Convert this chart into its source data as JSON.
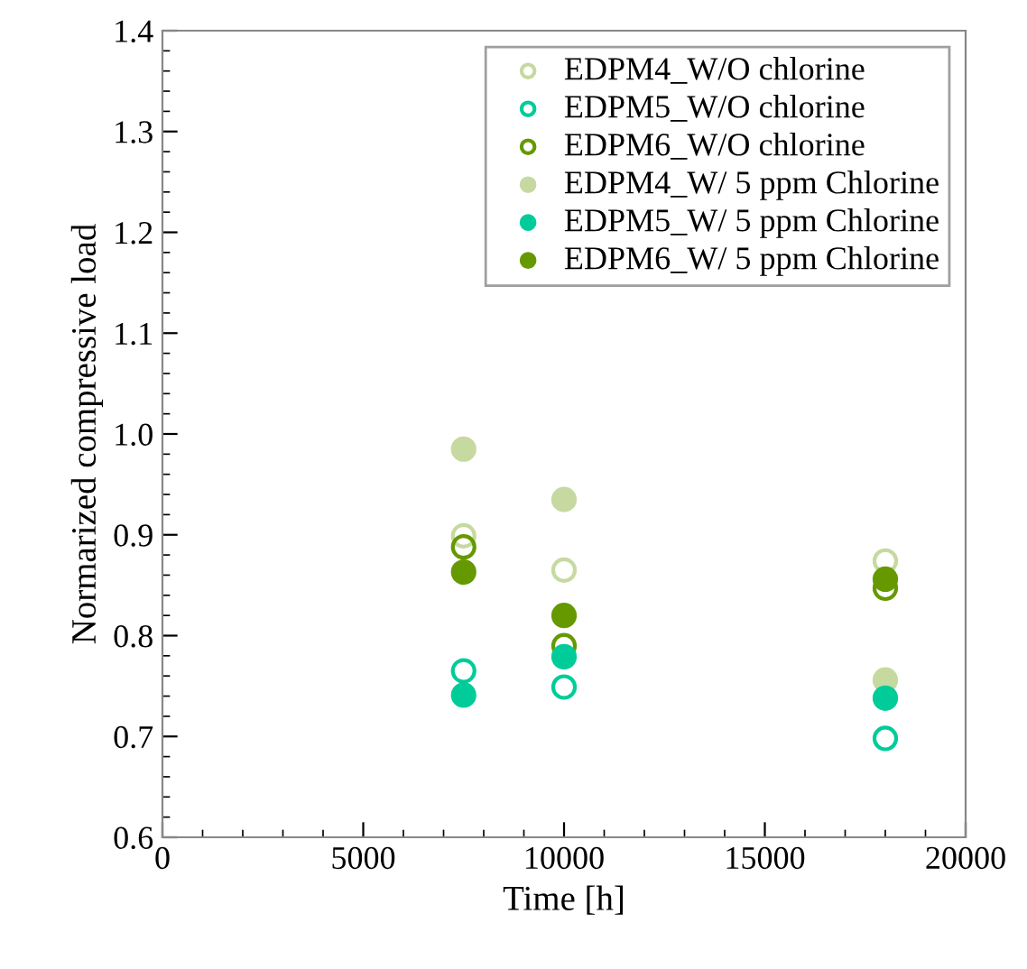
{
  "chart_data": {
    "type": "scatter",
    "xlabel": "Time [h]",
    "ylabel": "Normarized compressive load",
    "xlim": [
      0,
      20000
    ],
    "xticks": [
      0,
      5000,
      10000,
      15000,
      20000
    ],
    "ylim": [
      0.6,
      1.4
    ],
    "yticks": [
      0.6,
      0.7,
      0.8,
      0.9,
      {
        "value": 1.0,
        "label": "1.0"
      },
      1.1,
      1.2,
      1.3,
      1.4
    ],
    "grid": false,
    "legend": "top right",
    "marker": "circle",
    "x": [
      7500,
      10000,
      18000
    ],
    "series": [
      {
        "name": "EDPM4_W/O chlorine",
        "color": "#c6d9a0",
        "marker": "open circle",
        "values": [
          0.899,
          0.865,
          0.874
        ]
      },
      {
        "name": "EDPM5_W/O chlorine",
        "color": "#00cc99",
        "marker": "open circle",
        "values": [
          0.765,
          0.749,
          0.698
        ]
      },
      {
        "name": "EDPM6_W/O chlorine",
        "color": "#669900",
        "marker": "open circle",
        "values": [
          0.888,
          0.79,
          0.847
        ]
      },
      {
        "name": "EDPM4_W/ 5 ppm Chlorine",
        "color": "#c6d9a0",
        "values": [
          0.985,
          0.935,
          0.756
        ]
      },
      {
        "name": "EDPM5_W/ 5 ppm Chlorine",
        "color": "#00cc99",
        "values": [
          0.741,
          0.779,
          0.738
        ]
      },
      {
        "name": "EDPM6_W/ 5 ppm Chlorine",
        "color": "#669900",
        "values": [
          0.863,
          0.82,
          0.856
        ]
      }
    ]
  }
}
